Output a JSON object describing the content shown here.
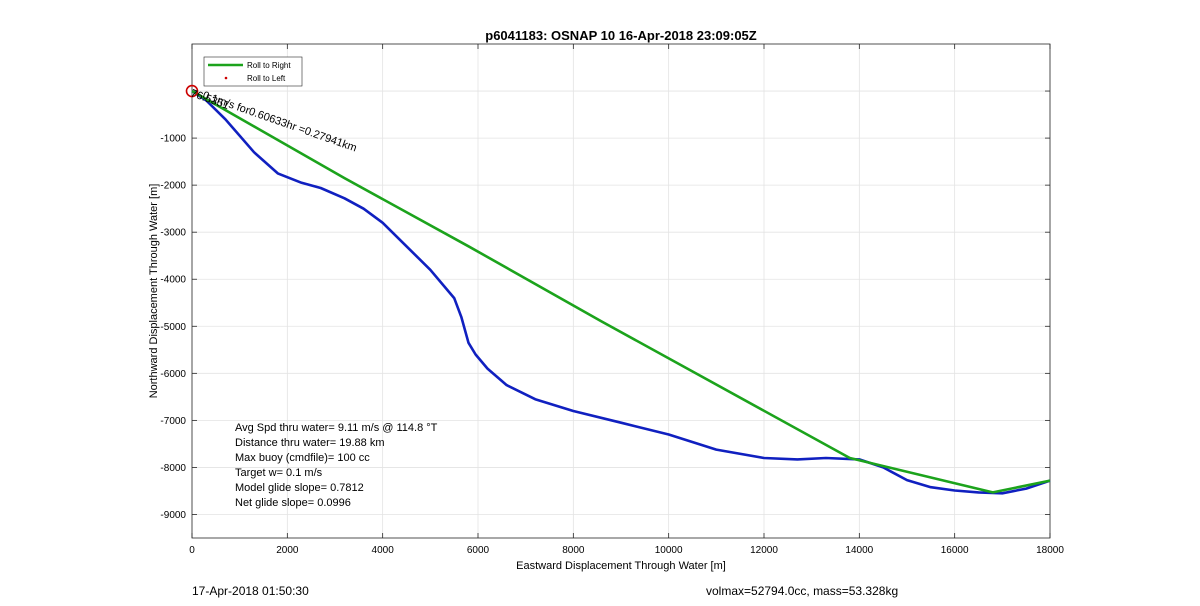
{
  "chart_data": {
    "type": "line",
    "title": "p6041183: OSNAP 10 16-Apr-2018 23:09:05Z",
    "xlabel": "Eastward Displacement Through Water [m]",
    "ylabel": "Northward Displacement Through Water [m]",
    "xlim": [
      0,
      18000
    ],
    "ylim": [
      -9500,
      1000
    ],
    "x_ticks": [
      0,
      2000,
      4000,
      6000,
      8000,
      10000,
      12000,
      14000,
      16000,
      18000
    ],
    "y_ticks": [
      -9000,
      -8000,
      -7000,
      -6000,
      -5000,
      -4000,
      -3000,
      -2000,
      -1000
    ],
    "grid": true,
    "legend_position": "top-left",
    "legend": [
      {
        "label": "Roll to Right",
        "color": "#1ca31c",
        "style": "line"
      },
      {
        "label": "Roll to Left",
        "color": "#cc0000",
        "style": "dot"
      }
    ],
    "series": [
      {
        "key": "blue-track",
        "color": "#1020c0",
        "points": [
          [
            0,
            0
          ],
          [
            300,
            -200
          ],
          [
            700,
            -600
          ],
          [
            1300,
            -1300
          ],
          [
            1800,
            -1750
          ],
          [
            2300,
            -1950
          ],
          [
            2700,
            -2060
          ],
          [
            3200,
            -2280
          ],
          [
            3600,
            -2500
          ],
          [
            4000,
            -2800
          ],
          [
            4500,
            -3300
          ],
          [
            5000,
            -3800
          ],
          [
            5500,
            -4400
          ],
          [
            5650,
            -4800
          ],
          [
            5800,
            -5350
          ],
          [
            5950,
            -5600
          ],
          [
            6200,
            -5900
          ],
          [
            6600,
            -6250
          ],
          [
            7200,
            -6550
          ],
          [
            8000,
            -6800
          ],
          [
            9000,
            -7050
          ],
          [
            10000,
            -7300
          ],
          [
            11000,
            -7620
          ],
          [
            12000,
            -7800
          ],
          [
            12700,
            -7830
          ],
          [
            13300,
            -7800
          ],
          [
            14000,
            -7830
          ],
          [
            14500,
            -8000
          ],
          [
            15000,
            -8270
          ],
          [
            15500,
            -8420
          ],
          [
            16000,
            -8490
          ],
          [
            16500,
            -8530
          ],
          [
            17000,
            -8550
          ],
          [
            17500,
            -8450
          ],
          [
            18000,
            -8280
          ]
        ]
      },
      {
        "key": "green-track",
        "color": "#1ca31c",
        "points": [
          [
            0,
            0
          ],
          [
            3200,
            -1850
          ],
          [
            5800,
            -3300
          ],
          [
            8600,
            -4900
          ],
          [
            13800,
            -7800
          ],
          [
            16800,
            -8530
          ],
          [
            18000,
            -8280
          ]
        ]
      }
    ],
    "annotations": {
      "slant_text": "0.1m/s for0.60633hr =0.27941km",
      "overlap_text": "76.5351"
    },
    "start_marker_color": "#cc0000"
  },
  "stats": [
    "Avg Spd thru water=  9.11 m/s @ 114.8 °T",
    "Distance thru water= 19.88 km",
    "Max buoy (cmdfile)= 100 cc",
    "Target w= 0.1 m/s",
    "Model glide slope= 0.7812",
    "Net glide slope= 0.0996"
  ],
  "footer": {
    "timestamp": "17-Apr-2018 01:50:30",
    "volmax": "volmax=52794.0cc, mass=53.328kg"
  }
}
